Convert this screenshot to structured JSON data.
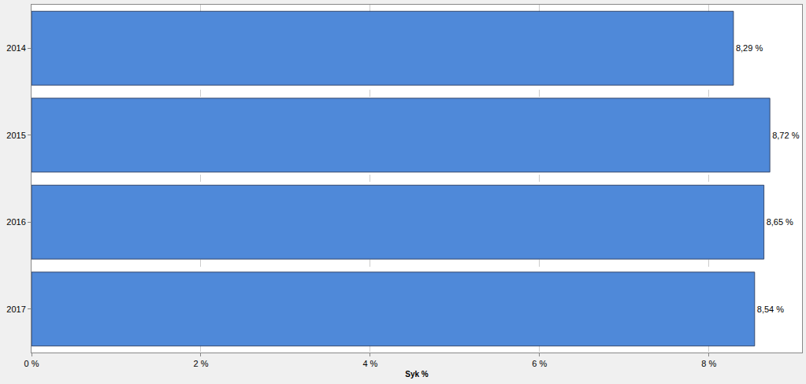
{
  "chart_data": {
    "type": "bar",
    "orientation": "horizontal",
    "x_label": "Syk %",
    "categories": [
      "2014",
      "2015",
      "2016",
      "2017"
    ],
    "values": [
      8.29,
      8.72,
      8.65,
      8.54
    ],
    "value_labels": [
      "8,29 %",
      "8,72 %",
      "8,65 %",
      "8,54 %"
    ],
    "data_labels": true,
    "color": "#4f89d9",
    "xlim": [
      0,
      9.1
    ],
    "xticks": [
      {
        "value": 0,
        "label": "0 %"
      },
      {
        "value": 2,
        "label": "2 %"
      },
      {
        "value": 4,
        "label": "4 %"
      },
      {
        "value": 6,
        "label": "6 %"
      },
      {
        "value": 8,
        "label": "8 %"
      }
    ],
    "grid": true
  }
}
